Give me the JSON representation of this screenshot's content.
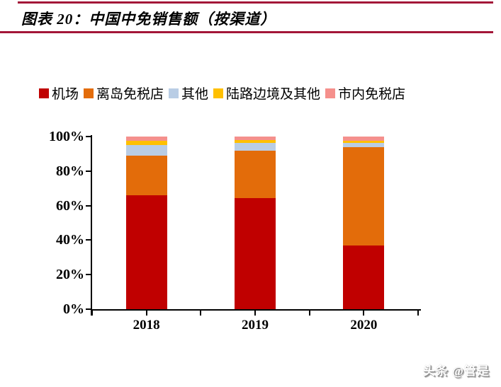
{
  "title": {
    "text": "图表 20：中国中免销售额（按渠道）"
  },
  "watermark": {
    "text": "头条 @管是"
  },
  "theme": {
    "rule_color": "#A31638",
    "axis_color": "#000000",
    "text_color": "#000000",
    "background": "#ffffff"
  },
  "chart_data": {
    "type": "bar",
    "stacked": true,
    "percent": true,
    "title": "中国中免销售额（按渠道）",
    "categories": [
      "2018",
      "2019",
      "2020"
    ],
    "series": [
      {
        "name": "机场",
        "color": "#C00000",
        "values": [
          66.0,
          64.5,
          37.0
        ]
      },
      {
        "name": "离岛免税店",
        "color": "#E36C0A",
        "values": [
          23.0,
          27.5,
          57.0
        ]
      },
      {
        "name": "其他",
        "color": "#B9CDE5",
        "values": [
          6.2,
          4.5,
          2.3
        ]
      },
      {
        "name": "陆路边境及其他",
        "color": "#FFC000",
        "values": [
          2.4,
          1.5,
          1.4
        ]
      },
      {
        "name": "市内免税店",
        "color": "#F5908C",
        "values": [
          2.4,
          2.0,
          2.3
        ]
      }
    ],
    "xlabel": "",
    "ylabel": "",
    "ylim": [
      0,
      100
    ],
    "yticks": [
      "0%",
      "20%",
      "40%",
      "60%",
      "80%",
      "100%"
    ],
    "grid": false,
    "legend_position": "top"
  }
}
